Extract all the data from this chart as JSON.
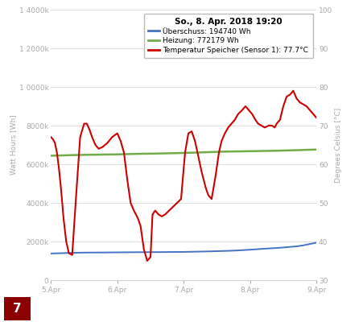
{
  "title": "So., 8. Apr. 2018 19:20",
  "legend_labels": [
    "Überschuss: 194740 Wh",
    "Heizung: 772179 Wh",
    "Temperatur Speicher (Sensor 1): 77.7°C"
  ],
  "legend_colors": [
    "#4472c4",
    "#70ad47",
    "#cc0000"
  ],
  "ylabel_left": "Watt Hours [Wh]",
  "ylabel_right": "Degrees Celsius [°C]",
  "xlim": [
    0,
    4
  ],
  "ylim_left": [
    0,
    14000000
  ],
  "ylim_right": [
    30,
    100
  ],
  "yticks_left": [
    0,
    2000000,
    4000000,
    6000000,
    8000000,
    10000000,
    12000000,
    14000000
  ],
  "ytick_labels_left": [
    "0",
    "2000k",
    "4000k",
    "6000k",
    "8000k",
    "1 0000k",
    "1 2000k",
    "1 4000k"
  ],
  "yticks_right": [
    30,
    40,
    50,
    60,
    70,
    80,
    90,
    100
  ],
  "xtick_positions": [
    0,
    1,
    2,
    3,
    4
  ],
  "xtick_labels": [
    "5.Apr",
    "6.Apr",
    "7.Apr",
    "8.Apr",
    "9.Apr"
  ],
  "background_color": "#ffffff",
  "grid_color": "#d0d0d0",
  "number_box_color": "#8b0000",
  "number_box_text": "7",
  "blue_x": [
    0.0,
    0.1,
    0.2,
    0.3,
    0.4,
    0.5,
    0.6,
    0.7,
    0.8,
    0.9,
    1.0,
    1.1,
    1.2,
    1.3,
    1.4,
    1.5,
    1.6,
    1.7,
    1.8,
    1.9,
    2.0,
    2.1,
    2.2,
    2.3,
    2.4,
    2.5,
    2.6,
    2.7,
    2.8,
    2.9,
    3.0,
    3.1,
    3.2,
    3.3,
    3.4,
    3.5,
    3.6,
    3.7,
    3.8,
    3.9,
    4.0
  ],
  "blue_y": [
    1380000,
    1390000,
    1400000,
    1410000,
    1420000,
    1425000,
    1428000,
    1430000,
    1432000,
    1435000,
    1438000,
    1441000,
    1443000,
    1445000,
    1447000,
    1449000,
    1451000,
    1453000,
    1455000,
    1458000,
    1461000,
    1468000,
    1476000,
    1482000,
    1490000,
    1500000,
    1510000,
    1520000,
    1535000,
    1555000,
    1575000,
    1600000,
    1625000,
    1645000,
    1665000,
    1690000,
    1720000,
    1750000,
    1800000,
    1870000,
    1940000
  ],
  "green_x": [
    0.0,
    0.1,
    0.2,
    0.3,
    0.4,
    0.5,
    0.6,
    0.7,
    0.8,
    0.9,
    1.0,
    1.1,
    1.2,
    1.3,
    1.4,
    1.5,
    1.6,
    1.7,
    1.8,
    1.9,
    2.0,
    2.1,
    2.2,
    2.3,
    2.4,
    2.5,
    2.6,
    2.7,
    2.8,
    2.9,
    3.0,
    3.1,
    3.2,
    3.3,
    3.4,
    3.5,
    3.6,
    3.7,
    3.8,
    3.9,
    4.0
  ],
  "green_y": [
    6440000,
    6450000,
    6460000,
    6470000,
    6478000,
    6485000,
    6490000,
    6495000,
    6500000,
    6505000,
    6510000,
    6518000,
    6528000,
    6538000,
    6543000,
    6547000,
    6552000,
    6560000,
    6568000,
    6576000,
    6585000,
    6595000,
    6605000,
    6618000,
    6630000,
    6640000,
    6652000,
    6658000,
    6663000,
    6668000,
    6675000,
    6680000,
    6686000,
    6692000,
    6698000,
    6708000,
    6718000,
    6728000,
    6738000,
    6750000,
    6758000
  ],
  "red_x": [
    0.0,
    0.03,
    0.06,
    0.09,
    0.12,
    0.15,
    0.19,
    0.23,
    0.27,
    0.32,
    0.38,
    0.44,
    0.5,
    0.54,
    0.58,
    0.62,
    0.67,
    0.72,
    0.78,
    0.85,
    0.92,
    1.0,
    1.05,
    1.1,
    1.15,
    1.2,
    1.25,
    1.28,
    1.31,
    1.35,
    1.4,
    1.45,
    1.5,
    1.53,
    1.57,
    1.62,
    1.67,
    1.72,
    1.78,
    1.84,
    1.9,
    1.96,
    2.02,
    2.07,
    2.12,
    2.17,
    2.22,
    2.27,
    2.3,
    2.33,
    2.37,
    2.42,
    2.48,
    2.53,
    2.57,
    2.62,
    2.67,
    2.72,
    2.77,
    2.82,
    2.88,
    2.93,
    2.98,
    3.03,
    3.08,
    3.12,
    3.17,
    3.22,
    3.28,
    3.33,
    3.37,
    3.4,
    3.45,
    3.5,
    3.55,
    3.6,
    3.65,
    3.7,
    3.75,
    3.8,
    3.85,
    3.9,
    3.95,
    4.0
  ],
  "red_y": [
    67,
    66.5,
    65.5,
    63,
    59,
    54,
    46,
    40,
    37,
    36.5,
    52,
    67,
    70.5,
    70.5,
    69,
    67,
    65,
    64,
    64.5,
    65.5,
    67,
    68,
    66,
    63,
    56,
    50,
    48,
    47,
    46,
    44,
    38,
    35,
    36,
    47,
    48,
    47,
    46.5,
    47,
    48,
    49,
    50,
    51,
    63,
    68,
    68.5,
    66,
    62,
    58,
    56,
    54,
    52,
    51,
    57,
    63,
    66,
    68,
    69.5,
    70.5,
    71.5,
    73,
    74,
    75,
    74,
    73,
    71.5,
    70.5,
    70,
    69.5,
    70,
    70,
    69.5,
    70.5,
    71.5,
    75,
    77.5,
    78,
    79,
    77,
    76,
    75.5,
    75,
    74,
    73,
    72
  ]
}
